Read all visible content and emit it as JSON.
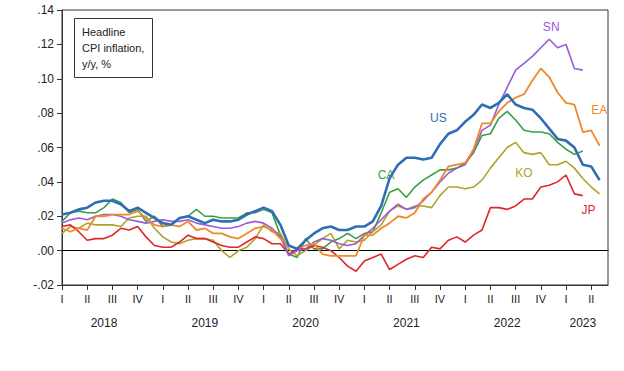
{
  "chart_data": {
    "type": "line",
    "title": "Headline\nCPI inflation,\ny/y, %",
    "categories": [
      "I",
      null,
      null,
      "II",
      null,
      null,
      "III",
      null,
      null,
      "IV",
      null,
      null,
      "I",
      null,
      null,
      "II",
      null,
      null,
      "III",
      null,
      null,
      "IV",
      null,
      null,
      "I",
      null,
      null,
      "II",
      null,
      null,
      "III",
      null,
      null,
      "IV",
      null,
      null,
      "I",
      null,
      null,
      "II",
      null,
      null,
      "III",
      null,
      null,
      "IV",
      null,
      null,
      "I",
      null,
      null,
      "II",
      null,
      null,
      "III",
      null,
      null,
      "IV",
      null,
      null,
      "I",
      null,
      null,
      "II",
      null,
      null
    ],
    "years": [
      "2018",
      "2019",
      "2020",
      "2021",
      "2022",
      "2023"
    ],
    "ylim": [
      -0.02,
      0.14
    ],
    "yticks": [
      {
        "value": -0.02,
        "label": "-.02"
      },
      {
        "value": 0,
        "label": ".00"
      },
      {
        "value": 0.02,
        "label": ".02"
      },
      {
        "value": 0.04,
        "label": ".04"
      },
      {
        "value": 0.06,
        "label": ".06"
      },
      {
        "value": 0.08,
        "label": ".08"
      },
      {
        "value": 0.1,
        "label": ".10"
      },
      {
        "value": 0.12,
        "label": ".12"
      },
      {
        "value": 0.14,
        "label": ".14"
      }
    ],
    "grid": false,
    "series": [
      {
        "name": "US",
        "color": "#2f6db5",
        "values": [
          0.021,
          0.022,
          0.024,
          0.025,
          0.028,
          0.029,
          0.029,
          0.027,
          0.023,
          0.025,
          0.022,
          0.019,
          0.016,
          0.015,
          0.019,
          0.02,
          0.018,
          0.016,
          0.018,
          0.017,
          0.017,
          0.018,
          0.021,
          0.023,
          0.025,
          0.023,
          0.015,
          0.003,
          0.001,
          0.006,
          0.01,
          0.013,
          0.014,
          0.012,
          0.012,
          0.014,
          0.014,
          0.017,
          0.026,
          0.042,
          0.05,
          0.054,
          0.054,
          0.053,
          0.054,
          0.062,
          0.068,
          0.07,
          0.075,
          0.079,
          0.085,
          0.083,
          0.086,
          0.091,
          0.085,
          0.083,
          0.082,
          0.077,
          0.071,
          0.065,
          0.064,
          0.06,
          0.05,
          0.049,
          0.041,
          null
        ]
      },
      {
        "name": "CA",
        "color": "#3a9e47",
        "values": [
          0.017,
          0.022,
          0.023,
          0.022,
          0.022,
          0.025,
          0.03,
          0.028,
          0.022,
          0.024,
          0.017,
          0.02,
          0.014,
          0.015,
          0.019,
          0.02,
          0.024,
          0.02,
          0.02,
          0.019,
          0.019,
          0.019,
          0.022,
          0.022,
          0.024,
          0.022,
          0.009,
          -0.002,
          -0.004,
          0.007,
          0.001,
          0.001,
          0.005,
          0.007,
          0.01,
          0.007,
          0.01,
          0.011,
          0.022,
          0.034,
          0.036,
          0.031,
          0.037,
          0.041,
          0.044,
          0.047,
          0.047,
          0.048,
          0.051,
          0.057,
          0.067,
          0.068,
          0.077,
          0.081,
          0.076,
          0.07,
          0.069,
          0.069,
          0.068,
          0.063,
          0.059,
          0.056,
          0.058,
          null,
          null,
          null
        ]
      },
      {
        "name": "KO",
        "color": "#b0a22a",
        "values": [
          0.01,
          0.014,
          0.013,
          0.016,
          0.015,
          0.015,
          0.015,
          0.014,
          0.019,
          0.02,
          0.02,
          0.013,
          0.008,
          0.005,
          0.004,
          0.006,
          0.007,
          0.007,
          0.006,
          0.0,
          -0.004,
          0.0,
          0.002,
          0.007,
          0.015,
          0.011,
          0.01,
          0.001,
          -0.003,
          0.0,
          0.003,
          0.007,
          0.01,
          0.001,
          0.006,
          0.005,
          0.006,
          0.011,
          0.015,
          0.023,
          0.026,
          0.024,
          0.026,
          0.026,
          0.025,
          0.032,
          0.037,
          0.037,
          0.036,
          0.037,
          0.041,
          0.048,
          0.054,
          0.06,
          0.063,
          0.057,
          0.056,
          0.057,
          0.05,
          0.05,
          0.052,
          0.048,
          0.042,
          0.037,
          0.033,
          null
        ]
      },
      {
        "name": "JP",
        "color": "#e0262a",
        "values": [
          0.014,
          0.015,
          0.011,
          0.006,
          0.007,
          0.007,
          0.009,
          0.013,
          0.012,
          0.014,
          0.008,
          0.003,
          0.002,
          0.002,
          0.005,
          0.009,
          0.007,
          0.007,
          0.005,
          0.003,
          0.002,
          0.002,
          0.005,
          0.008,
          0.007,
          0.004,
          0.004,
          -0.002,
          0.001,
          0.001,
          0.003,
          0.002,
          0.0,
          -0.004,
          -0.009,
          -0.012,
          -0.006,
          -0.004,
          -0.002,
          -0.011,
          -0.008,
          -0.005,
          -0.003,
          -0.004,
          0.002,
          0.001,
          0.006,
          0.008,
          0.005,
          0.009,
          0.012,
          0.025,
          0.025,
          0.024,
          0.026,
          0.03,
          0.03,
          0.037,
          0.038,
          0.04,
          0.044,
          0.033,
          0.032,
          null,
          null,
          null
        ]
      },
      {
        "name": "SN",
        "color": "#9b5ad6",
        "values": [
          0.016,
          0.018,
          0.019,
          0.018,
          0.02,
          0.021,
          0.021,
          0.02,
          0.018,
          0.017,
          0.016,
          0.017,
          0.018,
          0.017,
          0.017,
          0.018,
          0.016,
          0.015,
          0.014,
          0.013,
          0.013,
          0.014,
          0.016,
          0.017,
          0.016,
          0.013,
          0.008,
          -0.003,
          0.0,
          0.001,
          0.005,
          0.007,
          0.006,
          0.004,
          0.003,
          0.004,
          0.009,
          0.013,
          0.018,
          0.023,
          0.027,
          0.024,
          0.025,
          0.029,
          0.034,
          0.04,
          0.045,
          0.048,
          0.05,
          0.058,
          0.07,
          0.073,
          0.085,
          0.095,
          0.105,
          0.109,
          0.113,
          0.118,
          0.123,
          0.118,
          0.12,
          0.106,
          0.105,
          null,
          null,
          null
        ]
      },
      {
        "name": "EA",
        "color": "#f0892a",
        "values": [
          0.013,
          0.011,
          0.013,
          0.012,
          0.02,
          0.02,
          0.021,
          0.021,
          0.021,
          0.023,
          0.019,
          0.015,
          0.014,
          0.015,
          0.014,
          0.017,
          0.012,
          0.013,
          0.01,
          0.01,
          0.008,
          0.007,
          0.01,
          0.013,
          0.014,
          0.012,
          0.007,
          0.003,
          0.001,
          0.003,
          0.004,
          -0.002,
          -0.003,
          -0.003,
          -0.003,
          -0.003,
          0.009,
          0.009,
          0.013,
          0.016,
          0.02,
          0.019,
          0.022,
          0.03,
          0.034,
          0.041,
          0.049,
          0.05,
          0.051,
          0.059,
          0.074,
          0.074,
          0.081,
          0.086,
          0.089,
          0.091,
          0.099,
          0.106,
          0.101,
          0.092,
          0.086,
          0.085,
          0.069,
          0.07,
          0.061,
          null
        ]
      }
    ]
  }
}
